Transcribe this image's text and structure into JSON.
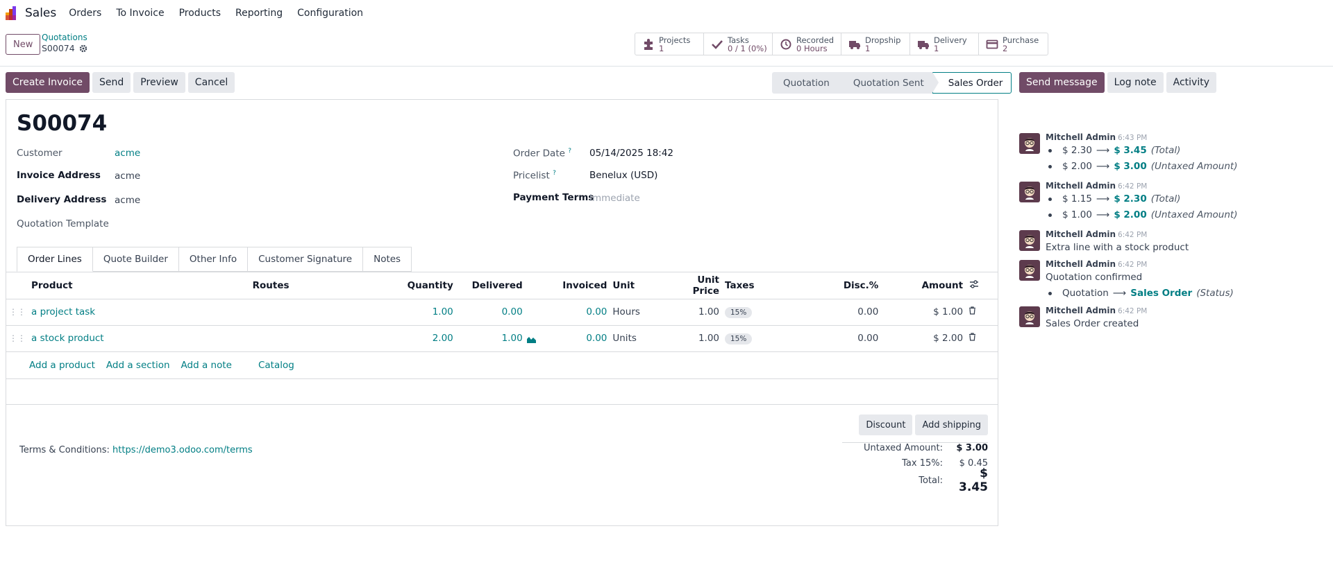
{
  "navbar": {
    "app_name": "Sales",
    "menu": [
      "Orders",
      "To Invoice",
      "Products",
      "Reporting",
      "Configuration"
    ]
  },
  "control": {
    "new_label": "New",
    "breadcrumb_parent": "Quotations",
    "breadcrumb_current": "S00074",
    "smart_buttons": [
      {
        "label": "Projects",
        "value": "1",
        "icon": "puzzle-icon"
      },
      {
        "label": "Tasks",
        "value": "0 / 1 (0%)",
        "icon": "check-icon"
      },
      {
        "label": "Recorded",
        "value": "0 Hours",
        "icon": "clock-icon"
      },
      {
        "label": "Dropship",
        "value": "1",
        "icon": "truck-icon"
      },
      {
        "label": "Delivery",
        "value": "1",
        "icon": "truck-icon"
      },
      {
        "label": "Purchase",
        "value": "2",
        "icon": "credit-card-icon"
      }
    ]
  },
  "actions": {
    "create_invoice": "Create Invoice",
    "send": "Send",
    "preview": "Preview",
    "cancel": "Cancel"
  },
  "status": {
    "stages": [
      "Quotation",
      "Quotation Sent",
      "Sales Order"
    ],
    "active": "Sales Order"
  },
  "form": {
    "title": "S00074",
    "customer_label": "Customer",
    "customer": "acme",
    "invoice_address_label": "Invoice Address",
    "invoice_address": "acme",
    "delivery_address_label": "Delivery Address",
    "delivery_address": "acme",
    "quotation_template_label": "Quotation Template",
    "order_date_label": "Order Date",
    "order_date": "05/14/2025 18:42",
    "pricelist_label": "Pricelist",
    "pricelist": "Benelux (USD)",
    "payment_terms_label": "Payment Terms",
    "payment_terms_placeholder": "Immediate",
    "help_mark": "?"
  },
  "tabs": [
    "Order Lines",
    "Quote Builder",
    "Other Info",
    "Customer Signature",
    "Notes"
  ],
  "lines": {
    "columns": [
      "Product",
      "Routes",
      "Quantity",
      "Delivered",
      "Invoiced",
      "Unit",
      "Unit Price",
      "Taxes",
      "Disc.%",
      "Amount"
    ],
    "rows": [
      {
        "product": "a project task",
        "routes": "",
        "quantity": "1.00",
        "delivered": "0.00",
        "invoiced": "0.00",
        "unit": "Hours",
        "unit_price": "1.00",
        "taxes": "15%",
        "discount": "0.00",
        "amount": "$ 1.00"
      },
      {
        "product": "a stock product",
        "routes": "",
        "quantity": "2.00",
        "delivered": "1.00",
        "invoiced": "0.00",
        "unit": "Units",
        "unit_price": "1.00",
        "taxes": "15%",
        "discount": "0.00",
        "amount": "$ 2.00"
      }
    ],
    "add_product": "Add a product",
    "add_section": "Add a section",
    "add_note": "Add a note",
    "catalog": "Catalog"
  },
  "footer": {
    "discount": "Discount",
    "add_shipping": "Add shipping",
    "terms_label": "Terms & Conditions:",
    "terms_url": "https://demo3.odoo.com/terms",
    "untaxed_label": "Untaxed Amount:",
    "untaxed": "$ 3.00",
    "tax_label": "Tax 15%:",
    "tax": "$ 0.45",
    "total_label": "Total:",
    "total": "$ 3.45"
  },
  "chatter": {
    "send_message": "Send message",
    "log_note": "Log note",
    "activity": "Activity",
    "messages": [
      {
        "author": "Mitchell Admin",
        "time": "6:43 PM",
        "tracks": [
          {
            "old": "$ 2.30",
            "new": "$ 3.45",
            "field": "(Total)"
          },
          {
            "old": "$ 2.00",
            "new": "$ 3.00",
            "field": "(Untaxed Amount)"
          }
        ]
      },
      {
        "author": "Mitchell Admin",
        "time": "6:42 PM",
        "tracks": [
          {
            "old": "$ 1.15",
            "new": "$ 2.30",
            "field": "(Total)"
          },
          {
            "old": "$ 1.00",
            "new": "$ 2.00",
            "field": "(Untaxed Amount)"
          }
        ]
      },
      {
        "author": "Mitchell Admin",
        "time": "6:42 PM",
        "body": "Extra line with a stock product"
      },
      {
        "author": "Mitchell Admin",
        "time": "6:42 PM",
        "body": "Quotation confirmed",
        "tracks": [
          {
            "old": "Quotation",
            "new": "Sales Order",
            "field": "(Status)"
          }
        ]
      },
      {
        "author": "Mitchell Admin",
        "time": "6:42 PM",
        "body": "Sales Order created"
      }
    ]
  }
}
